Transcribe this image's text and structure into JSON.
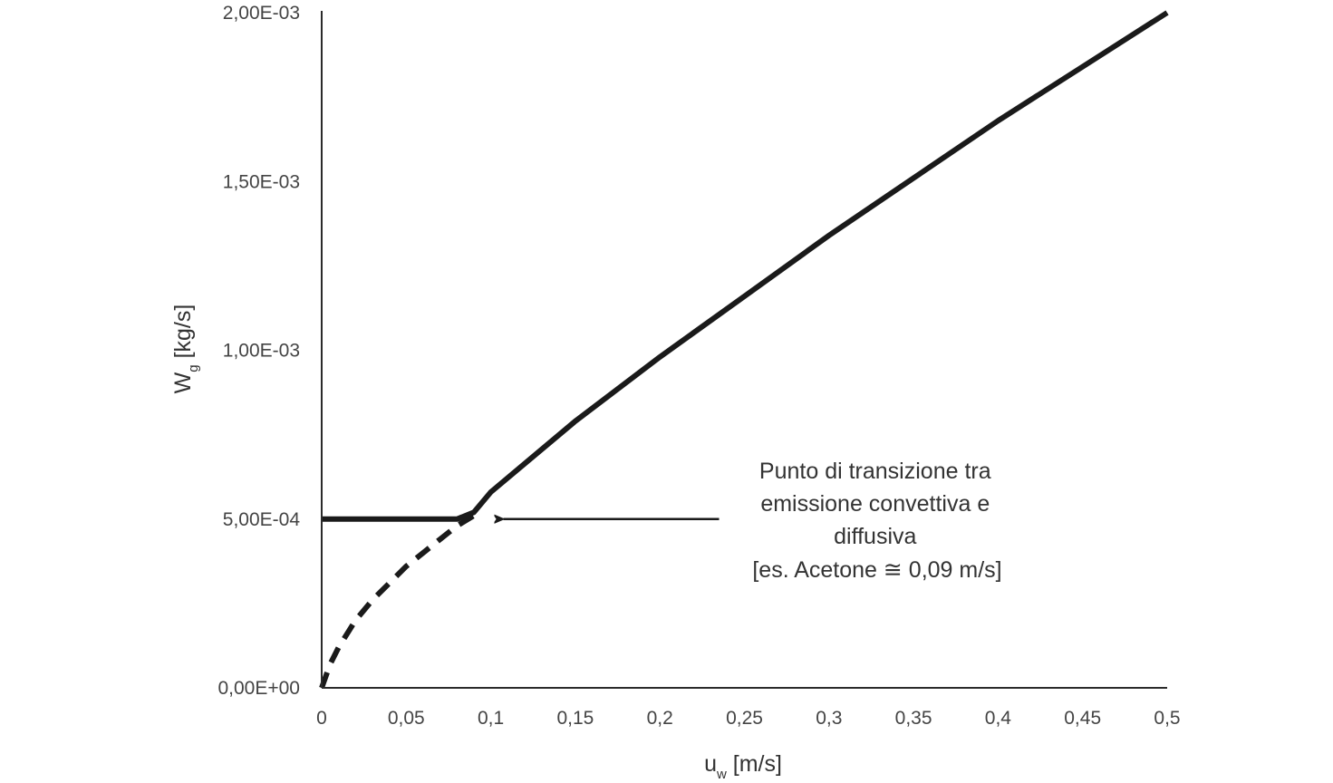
{
  "chart_data": {
    "type": "line",
    "title": "",
    "xlabel": {
      "main": "u",
      "sub": "w",
      "unit": " [m/s]"
    },
    "ylabel": {
      "main": "W",
      "sub": "g",
      "unit": " [kg/s]"
    },
    "xlim": [
      0,
      0.5
    ],
    "ylim": [
      0,
      0.002
    ],
    "grid": false,
    "legend": "none",
    "x_ticks": [
      0,
      0.05,
      0.1,
      0.15,
      0.2,
      0.25,
      0.3,
      0.35,
      0.4,
      0.45,
      0.5
    ],
    "x_tick_labels": [
      "0",
      "0,05",
      "0,1",
      "0,15",
      "0,2",
      "0,25",
      "0,3",
      "0,35",
      "0,4",
      "0,45",
      "0,5"
    ],
    "y_ticks": [
      0,
      0.0005,
      0.001,
      0.0015,
      0.002
    ],
    "y_tick_labels": [
      "0,00E+00",
      "5,00E-04",
      "1,00E-03",
      "1,50E-03",
      "2,00E-03"
    ],
    "series": [
      {
        "style": "solid",
        "color": "#1a1a1a",
        "x": [
          0,
          0.08,
          0.09,
          0.1,
          0.15,
          0.2,
          0.25,
          0.3,
          0.35,
          0.4,
          0.45,
          0.5
        ],
        "y": [
          0.0005,
          0.0005,
          0.00052,
          0.00058,
          0.00079,
          0.00098,
          0.00116,
          0.00134,
          0.00151,
          0.00168,
          0.00184,
          0.002
        ]
      },
      {
        "style": "dashed",
        "color": "#1a1a1a",
        "x": [
          0,
          0.005,
          0.01,
          0.02,
          0.03,
          0.04,
          0.05,
          0.06,
          0.07,
          0.08,
          0.09
        ],
        "y": [
          0,
          7e-05,
          0.00012,
          0.0002,
          0.00026,
          0.00031,
          0.00036,
          0.0004,
          0.00044,
          0.00048,
          0.00051
        ]
      }
    ],
    "annotation": {
      "lines": [
        "Punto di transizione tra",
        "emissione convettiva e",
        "diffusiva",
        "[es. Acetone ≅ 0,09 m/s]"
      ],
      "arrow_from": [
        0.235,
        0.0005
      ],
      "arrow_to": [
        0.1,
        0.0005
      ]
    }
  }
}
